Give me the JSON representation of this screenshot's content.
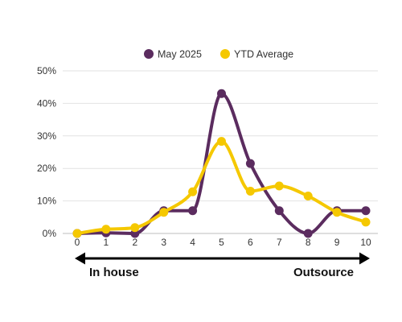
{
  "chart_data": {
    "type": "line",
    "title": "",
    "xlabel": "",
    "ylabel": "",
    "x": [
      0,
      1,
      2,
      3,
      4,
      5,
      6,
      7,
      8,
      9,
      10
    ],
    "ylim": [
      0,
      50
    ],
    "y_ticks": [
      "0%",
      "10%",
      "20%",
      "30%",
      "40%",
      "50%"
    ],
    "grid": "horizontal",
    "legend_position": "top",
    "series": [
      {
        "name": "May 2025",
        "color": "#5B2C5F",
        "values": [
          0,
          0.2,
          0,
          7,
          7,
          43,
          21.5,
          7,
          0,
          7,
          7
        ]
      },
      {
        "name": "YTD Average",
        "color": "#F5C800",
        "values": [
          0,
          1.3,
          1.8,
          6.5,
          12.8,
          28.3,
          13,
          14.6,
          11.5,
          6.5,
          3.5
        ]
      }
    ],
    "scale_arrow": {
      "left_label": "In house",
      "right_label": "Outsource"
    }
  }
}
